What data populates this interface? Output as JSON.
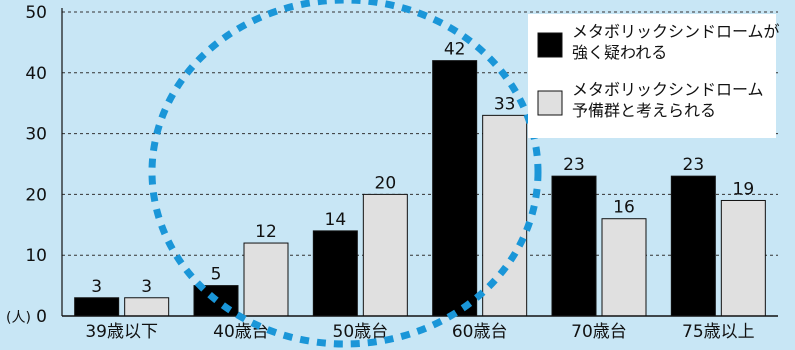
{
  "chart_data": {
    "type": "bar",
    "unit_label": "(人)",
    "ylim": [
      0,
      50
    ],
    "yticks": [
      0,
      10,
      20,
      30,
      40,
      50
    ],
    "grid": true,
    "legend_position": "top-right",
    "categories": [
      "39歳以下",
      "40歳台",
      "50歳台",
      "60歳台",
      "70歳台",
      "75歳以上"
    ],
    "series": [
      {
        "name_lines": [
          "メタボリックシンドロームが",
          "強く疑われる"
        ],
        "color": "#000000",
        "values": [
          3,
          5,
          14,
          42,
          23,
          23
        ]
      },
      {
        "name_lines": [
          "メタボリックシンドローム",
          "予備群と考えられる"
        ],
        "color": "#e0e0e0",
        "values": [
          3,
          12,
          20,
          33,
          16,
          19
        ]
      }
    ],
    "highlight_circle_color": "#1a96d8"
  }
}
